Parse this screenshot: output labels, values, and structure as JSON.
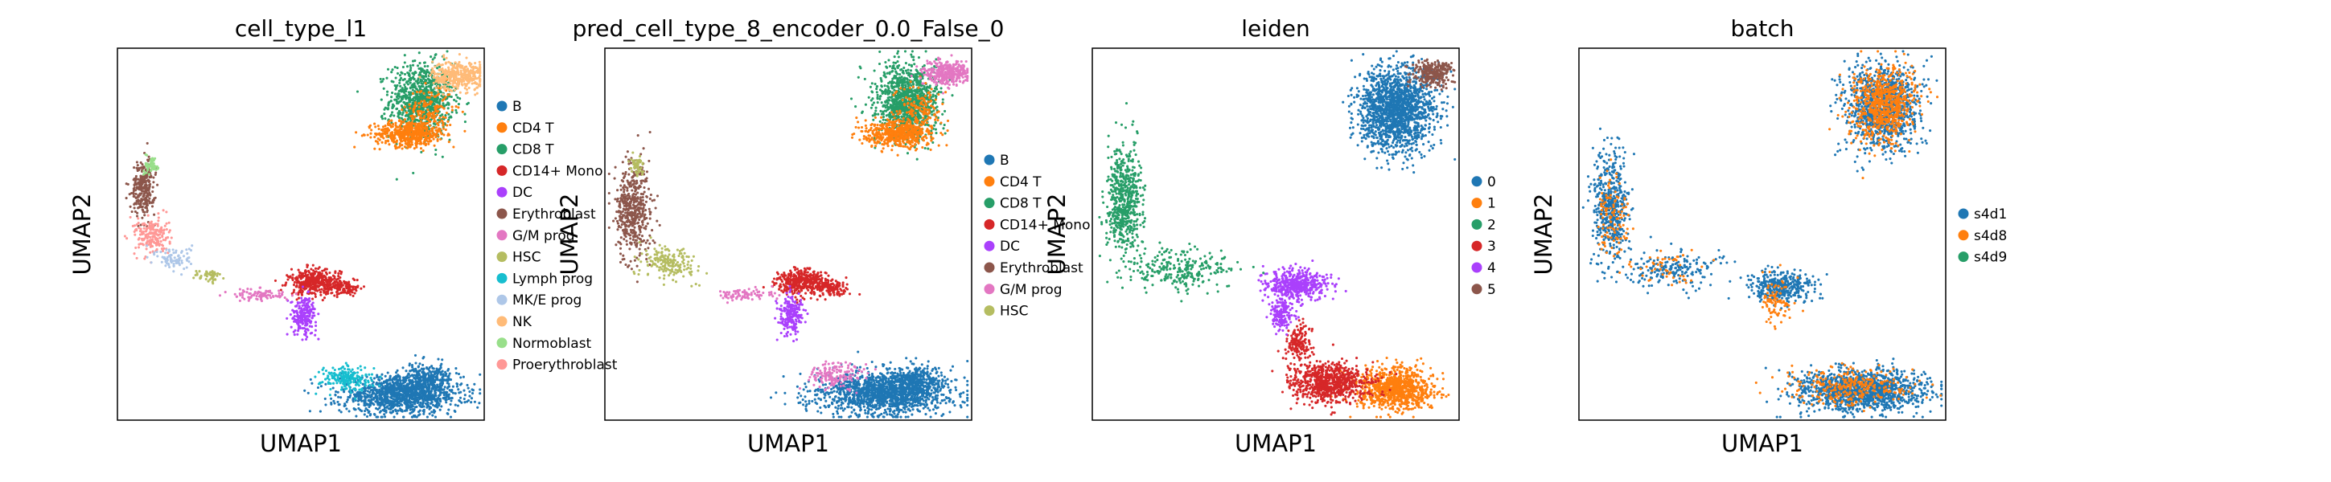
{
  "chart_data": [
    {
      "type": "scatter",
      "title": "cell_type_l1",
      "xlabel": "UMAP1",
      "ylabel": "UMAP2",
      "grid": false,
      "ticks": false,
      "legend_position": "right",
      "categories": [
        {
          "name": "B",
          "color": "#1f77b4"
        },
        {
          "name": "CD4 T",
          "color": "#ff7f0e"
        },
        {
          "name": "CD8 T",
          "color": "#279e68"
        },
        {
          "name": "CD14+ Mono",
          "color": "#d62728"
        },
        {
          "name": "DC",
          "color": "#aa40fc"
        },
        {
          "name": "Erythroblast",
          "color": "#8c564b"
        },
        {
          "name": "G/M prog",
          "color": "#e377c2"
        },
        {
          "name": "HSC",
          "color": "#b5bd61"
        },
        {
          "name": "Lymph prog",
          "color": "#17becf"
        },
        {
          "name": "MK/E prog",
          "color": "#aec7e8"
        },
        {
          "name": "NK",
          "color": "#ffbb78"
        },
        {
          "name": "Normoblast",
          "color": "#98df8a"
        },
        {
          "name": "Proerythroblast",
          "color": "#ff9896"
        }
      ],
      "regions": [
        {
          "category": "CD8 T",
          "x": 7.0,
          "y": 7.3,
          "sx": 0.55,
          "sy": 0.9,
          "n": 900
        },
        {
          "category": "CD4 T",
          "x": 6.6,
          "y": 5.7,
          "sx": 0.6,
          "sy": 0.3,
          "n": 520
        },
        {
          "category": "CD4 T",
          "x": 7.3,
          "y": 6.8,
          "sx": 0.4,
          "sy": 0.6,
          "n": 160
        },
        {
          "category": "NK",
          "x": 8.3,
          "y": 8.5,
          "sx": 0.45,
          "sy": 0.35,
          "n": 380
        },
        {
          "category": "B",
          "x": 6.3,
          "y": -6.8,
          "sx": 1.05,
          "sy": 0.45,
          "n": 1150
        },
        {
          "category": "B",
          "x": 7.2,
          "y": -6.1,
          "sx": 0.45,
          "sy": 0.4,
          "n": 300
        },
        {
          "category": "Lymph prog",
          "x": 4.4,
          "y": -6.0,
          "sx": 0.45,
          "sy": 0.3,
          "n": 200
        },
        {
          "category": "CD14+ Mono",
          "x": 3.3,
          "y": -1.4,
          "sx": 0.45,
          "sy": 0.3,
          "n": 420
        },
        {
          "category": "CD14+ Mono",
          "x": 4.4,
          "y": -1.7,
          "sx": 0.25,
          "sy": 0.18,
          "n": 90
        },
        {
          "category": "DC",
          "x": 2.9,
          "y": -3.0,
          "sx": 0.22,
          "sy": 0.45,
          "n": 200
        },
        {
          "category": "Erythroblast",
          "x": -2.7,
          "y": 3.1,
          "sx": 0.2,
          "sy": 0.65,
          "n": 280
        },
        {
          "category": "Proerythroblast",
          "x": -2.4,
          "y": 0.8,
          "sx": 0.3,
          "sy": 0.45,
          "n": 200
        },
        {
          "category": "Normoblast",
          "x": -2.4,
          "y": 4.2,
          "sx": 0.12,
          "sy": 0.22,
          "n": 60
        },
        {
          "category": "MK/E prog",
          "x": -1.6,
          "y": -0.3,
          "sx": 0.3,
          "sy": 0.3,
          "n": 90
        },
        {
          "category": "HSC",
          "x": -0.4,
          "y": -1.1,
          "sx": 0.25,
          "sy": 0.15,
          "n": 50
        },
        {
          "category": "G/M prog",
          "x": 1.4,
          "y": -2.0,
          "sx": 0.5,
          "sy": 0.15,
          "n": 90
        }
      ]
    },
    {
      "type": "scatter",
      "title": "pred_cell_type_8_encoder_0.0_False_0",
      "xlabel": "UMAP1",
      "ylabel": "UMAP2",
      "grid": false,
      "ticks": false,
      "legend_position": "right",
      "categories": [
        {
          "name": "B",
          "color": "#1f77b4"
        },
        {
          "name": "CD4 T",
          "color": "#ff7f0e"
        },
        {
          "name": "CD8 T",
          "color": "#279e68"
        },
        {
          "name": "CD14+ Mono",
          "color": "#d62728"
        },
        {
          "name": "DC",
          "color": "#aa40fc"
        },
        {
          "name": "Erythroblast",
          "color": "#8c564b"
        },
        {
          "name": "G/M prog",
          "color": "#e377c2"
        },
        {
          "name": "HSC",
          "color": "#b5bd61"
        }
      ],
      "regions": [
        {
          "category": "CD8 T",
          "x": 7.0,
          "y": 7.3,
          "sx": 0.55,
          "sy": 0.9,
          "n": 1050
        },
        {
          "category": "CD4 T",
          "x": 6.6,
          "y": 5.7,
          "sx": 0.6,
          "sy": 0.3,
          "n": 520
        },
        {
          "category": "CD4 T",
          "x": 7.3,
          "y": 6.8,
          "sx": 0.4,
          "sy": 0.6,
          "n": 160
        },
        {
          "category": "G/M prog",
          "x": 8.3,
          "y": 8.6,
          "sx": 0.4,
          "sy": 0.3,
          "n": 320
        },
        {
          "category": "B",
          "x": 6.1,
          "y": -6.7,
          "sx": 1.15,
          "sy": 0.5,
          "n": 1400
        },
        {
          "category": "B",
          "x": 7.2,
          "y": -6.1,
          "sx": 0.45,
          "sy": 0.4,
          "n": 300
        },
        {
          "category": "CD14+ Mono",
          "x": 3.3,
          "y": -1.4,
          "sx": 0.45,
          "sy": 0.3,
          "n": 420
        },
        {
          "category": "CD14+ Mono",
          "x": 4.4,
          "y": -1.7,
          "sx": 0.25,
          "sy": 0.18,
          "n": 90
        },
        {
          "category": "DC",
          "x": 2.9,
          "y": -3.0,
          "sx": 0.22,
          "sy": 0.45,
          "n": 200
        },
        {
          "category": "G/M prog",
          "x": 4.4,
          "y": -5.9,
          "sx": 0.45,
          "sy": 0.3,
          "n": 160
        },
        {
          "category": "G/M prog",
          "x": 1.3,
          "y": -2.0,
          "sx": 0.5,
          "sy": 0.15,
          "n": 80
        },
        {
          "category": "Erythroblast",
          "x": -2.6,
          "y": 2.0,
          "sx": 0.3,
          "sy": 1.1,
          "n": 480
        },
        {
          "category": "HSC",
          "x": -1.4,
          "y": -0.5,
          "sx": 0.5,
          "sy": 0.4,
          "n": 180
        },
        {
          "category": "HSC",
          "x": -2.5,
          "y": 4.2,
          "sx": 0.12,
          "sy": 0.22,
          "n": 50
        }
      ]
    },
    {
      "type": "scatter",
      "title": "leiden",
      "xlabel": "UMAP1",
      "ylabel": "UMAP2",
      "grid": false,
      "ticks": false,
      "legend_position": "right",
      "categories": [
        {
          "name": "0",
          "color": "#1f77b4"
        },
        {
          "name": "1",
          "color": "#ff7f0e"
        },
        {
          "name": "2",
          "color": "#279e68"
        },
        {
          "name": "3",
          "color": "#d62728"
        },
        {
          "name": "4",
          "color": "#aa40fc"
        },
        {
          "name": "5",
          "color": "#8c564b"
        }
      ],
      "regions": [
        {
          "category": "0",
          "x": 7.0,
          "y": 6.9,
          "sx": 0.65,
          "sy": 1.0,
          "n": 1600
        },
        {
          "category": "5",
          "x": 8.3,
          "y": 8.6,
          "sx": 0.35,
          "sy": 0.3,
          "n": 280
        },
        {
          "category": "1",
          "x": 7.0,
          "y": -6.5,
          "sx": 0.65,
          "sy": 0.5,
          "n": 900
        },
        {
          "category": "3",
          "x": 4.7,
          "y": -6.2,
          "sx": 0.65,
          "sy": 0.45,
          "n": 750
        },
        {
          "category": "3",
          "x": 3.6,
          "y": -4.4,
          "sx": 0.2,
          "sy": 0.5,
          "n": 160
        },
        {
          "category": "4",
          "x": 3.5,
          "y": -1.5,
          "sx": 0.55,
          "sy": 0.35,
          "n": 480
        },
        {
          "category": "4",
          "x": 3.0,
          "y": -3.0,
          "sx": 0.2,
          "sy": 0.4,
          "n": 150
        },
        {
          "category": "2",
          "x": -2.5,
          "y": 2.4,
          "sx": 0.3,
          "sy": 1.3,
          "n": 600
        },
        {
          "category": "2",
          "x": -0.5,
          "y": -0.8,
          "sx": 0.9,
          "sy": 0.5,
          "n": 260
        }
      ]
    },
    {
      "type": "scatter",
      "title": "batch",
      "xlabel": "UMAP1",
      "ylabel": "UMAP2",
      "grid": false,
      "ticks": false,
      "legend_position": "right",
      "categories": [
        {
          "name": "s4d1",
          "color": "#1f77b4"
        },
        {
          "name": "s4d8",
          "color": "#ff7f0e"
        },
        {
          "name": "s4d9",
          "color": "#279e68"
        }
      ],
      "regions": [
        {
          "category": "s4d1",
          "x": 7.0,
          "y": 7.0,
          "sx": 0.65,
          "sy": 1.0,
          "n": 1100
        },
        {
          "category": "s4d8",
          "x": 7.0,
          "y": 7.1,
          "sx": 0.55,
          "sy": 0.9,
          "n": 700
        },
        {
          "category": "s4d1",
          "x": 6.3,
          "y": -6.6,
          "sx": 1.1,
          "sy": 0.5,
          "n": 1300
        },
        {
          "category": "s4d8",
          "x": 5.9,
          "y": -6.4,
          "sx": 1.0,
          "sy": 0.45,
          "n": 300
        },
        {
          "category": "s4d1",
          "x": 3.4,
          "y": -1.6,
          "sx": 0.55,
          "sy": 0.35,
          "n": 400
        },
        {
          "category": "s4d8",
          "x": 3.3,
          "y": -2.5,
          "sx": 0.3,
          "sy": 0.6,
          "n": 90
        },
        {
          "category": "s4d1",
          "x": -2.5,
          "y": 2.2,
          "sx": 0.3,
          "sy": 1.3,
          "n": 500
        },
        {
          "category": "s4d8",
          "x": -2.4,
          "y": 1.6,
          "sx": 0.3,
          "sy": 1.0,
          "n": 110
        },
        {
          "category": "s4d1",
          "x": -0.4,
          "y": -0.8,
          "sx": 0.8,
          "sy": 0.45,
          "n": 200
        },
        {
          "category": "s4d8",
          "x": -0.6,
          "y": -0.7,
          "sx": 0.7,
          "sy": 0.4,
          "n": 50
        }
      ]
    }
  ]
}
